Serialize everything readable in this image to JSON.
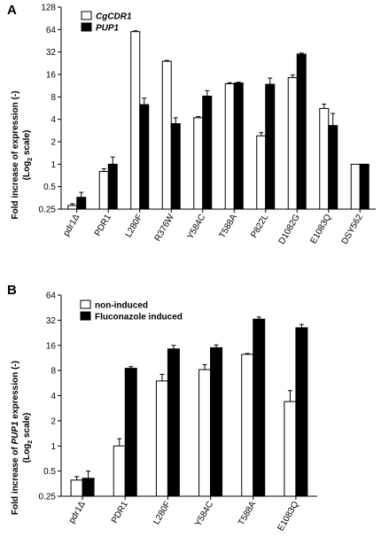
{
  "chart_data": [
    {
      "type": "bar",
      "panel_label": "A",
      "ylabel": "Fold increase of expression (-)",
      "ylabel_line2": "(Log",
      "ylabel_sub": "2",
      "ylabel_line2_end": " scale)",
      "y_scale": "log2",
      "ylim": [
        0.25,
        128
      ],
      "yticks": [
        0.25,
        0.5,
        1,
        2,
        4,
        8,
        16,
        32,
        64,
        128
      ],
      "ytick_labels": [
        "0.25",
        "0.5",
        "1",
        "2",
        "4",
        "8",
        "16",
        "32",
        "64",
        "128"
      ],
      "legend_position": "top-left",
      "categories": [
        "pdr1Δ",
        "PDR1",
        "L280F",
        "R376W",
        "Y584C",
        "T588A",
        "P822L",
        "D1082G",
        "E1083Q",
        "DSY562"
      ],
      "series": [
        {
          "name": "CgCDR1",
          "fill": "#ffffff",
          "values": [
            0.28,
            0.8,
            60,
            24,
            4.2,
            12,
            2.4,
            14.5,
            5.6,
            1.0
          ],
          "errors": [
            0.015,
            0.07,
            1.5,
            0.7,
            0.15,
            0.4,
            0.25,
            1.2,
            0.8,
            0.0
          ]
        },
        {
          "name": "PUP1",
          "fill": "#000000",
          "values": [
            0.36,
            1.0,
            6.3,
            3.5,
            8.2,
            12.3,
            11.8,
            30,
            3.3,
            1.0
          ],
          "errors": [
            0.06,
            0.25,
            1.4,
            0.7,
            1.5,
            0.3,
            2.5,
            1.0,
            1.5,
            0.0
          ]
        }
      ]
    },
    {
      "type": "bar",
      "panel_label": "B",
      "ylabel_pre": "Fold increase of ",
      "ylabel_italic": "PUP1",
      "ylabel_post": " expression (-)",
      "ylabel_line2": "(Log",
      "ylabel_sub": "2",
      "ylabel_line2_end": " scale)",
      "y_scale": "log2",
      "ylim": [
        0.25,
        64
      ],
      "yticks": [
        0.25,
        0.5,
        1,
        2,
        4,
        8,
        16,
        32,
        64
      ],
      "ytick_labels": [
        "0.25",
        "0.5",
        "1",
        "2",
        "4",
        "8",
        "16",
        "32",
        "64"
      ],
      "legend_position": "top-left",
      "categories": [
        "pdr1Δ",
        "PDR1",
        "L280F",
        "Y584C",
        "T588A",
        "E1083Q"
      ],
      "series": [
        {
          "name": "non-induced",
          "fill": "#ffffff",
          "values": [
            0.39,
            1.0,
            6.0,
            8.2,
            12.5,
            3.4
          ],
          "errors": [
            0.04,
            0.22,
            1.2,
            1.2,
            0.3,
            1.2
          ]
        },
        {
          "name": "Fluconazole induced",
          "fill": "#000000",
          "values": [
            0.41,
            8.5,
            14.5,
            15.0,
            33,
            26
          ],
          "errors": [
            0.09,
            0.4,
            1.5,
            1.2,
            2.0,
            2.5
          ]
        }
      ]
    }
  ]
}
